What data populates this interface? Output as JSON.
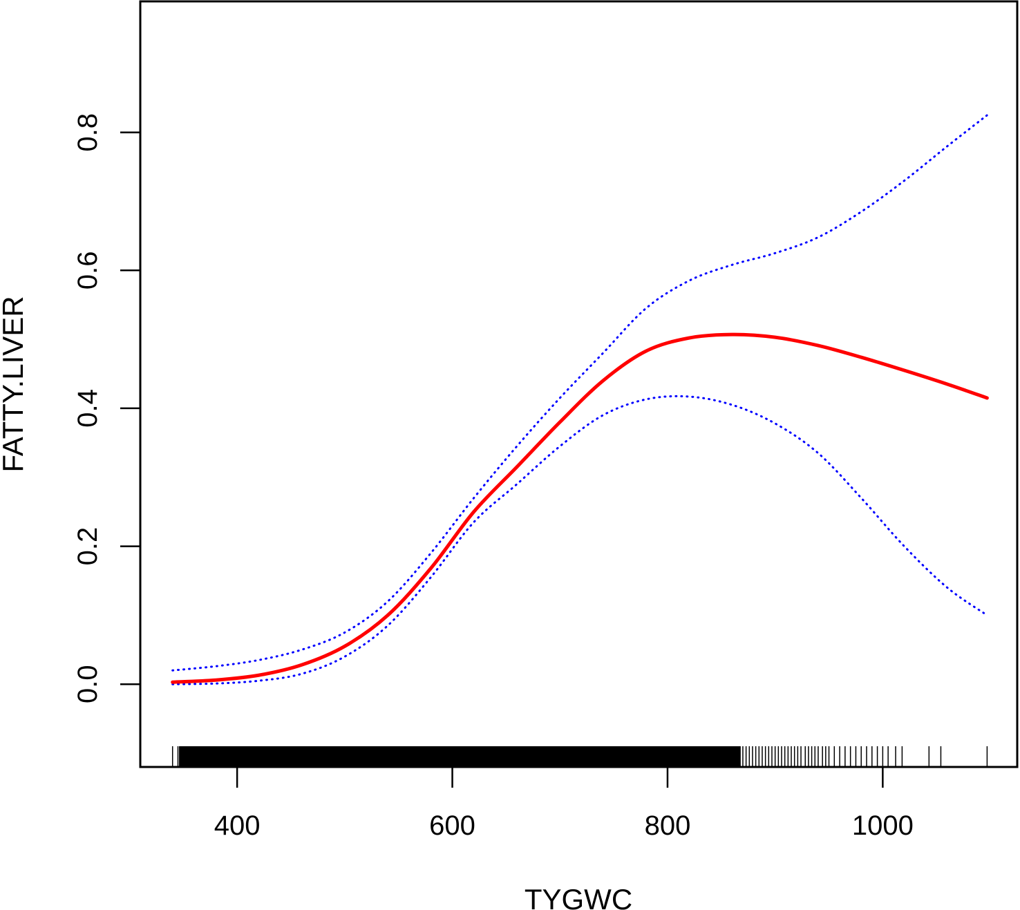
{
  "chart_data": {
    "type": "line",
    "title": "",
    "xlabel": "TYGWC",
    "ylabel": "FATTY.LIVER",
    "xlim": [
      310,
      1125
    ],
    "ylim": [
      -0.12,
      0.99
    ],
    "x_ticks": [
      400,
      600,
      800,
      1000
    ],
    "x_tick_labels": [
      "400",
      "600",
      "800",
      "1000"
    ],
    "y_ticks": [
      0.0,
      0.2,
      0.4,
      0.6,
      0.8
    ],
    "y_tick_labels": [
      "0.0",
      "0.2",
      "0.4",
      "0.6",
      "0.8"
    ],
    "grid": false,
    "legend": "none",
    "series": [
      {
        "style": "solid",
        "color": "#ff0000",
        "x": [
          340,
          380,
          420,
          460,
          500,
          540,
          580,
          620,
          660,
          700,
          740,
          780,
          820,
          860,
          900,
          940,
          980,
          1020,
          1060,
          1097
        ],
        "y": [
          0.003,
          0.006,
          0.013,
          0.028,
          0.055,
          0.1,
          0.168,
          0.25,
          0.315,
          0.38,
          0.44,
          0.483,
          0.502,
          0.507,
          0.503,
          0.491,
          0.474,
          0.455,
          0.435,
          0.415
        ]
      },
      {
        "style": "dotted",
        "color": "#0000ff",
        "x": [
          340,
          380,
          420,
          460,
          500,
          540,
          580,
          620,
          660,
          700,
          740,
          780,
          820,
          860,
          900,
          940,
          980,
          1020,
          1060,
          1097
        ],
        "y": [
          0.02,
          0.026,
          0.035,
          0.05,
          0.075,
          0.12,
          0.19,
          0.27,
          0.345,
          0.415,
          0.48,
          0.545,
          0.585,
          0.608,
          0.625,
          0.648,
          0.685,
          0.73,
          0.78,
          0.825
        ]
      },
      {
        "style": "dotted",
        "color": "#0000ff",
        "x": [
          340,
          380,
          420,
          460,
          500,
          540,
          580,
          620,
          660,
          700,
          740,
          780,
          820,
          860,
          900,
          940,
          980,
          1020,
          1060,
          1097
        ],
        "y": [
          0.0,
          0.001,
          0.005,
          0.015,
          0.04,
          0.085,
          0.155,
          0.235,
          0.29,
          0.345,
          0.39,
          0.413,
          0.417,
          0.405,
          0.378,
          0.335,
          0.27,
          0.2,
          0.14,
          0.1
        ]
      }
    ],
    "rug": {
      "color": "#000000",
      "dense_from": 346,
      "dense_to": 868,
      "x": [
        340,
        345,
        352,
        360,
        365,
        372,
        378,
        384,
        388,
        393,
        397,
        400,
        403,
        406,
        410,
        414,
        418,
        423,
        427,
        432,
        436,
        440,
        445,
        450,
        455,
        460,
        465,
        470,
        475,
        480,
        485,
        490,
        495,
        500,
        505,
        510,
        515,
        520,
        525,
        530,
        535,
        540,
        545,
        550,
        555,
        560,
        565,
        570,
        575,
        580,
        585,
        590,
        595,
        600,
        605,
        610,
        615,
        620,
        625,
        630,
        635,
        640,
        645,
        650,
        655,
        660,
        665,
        670,
        675,
        680,
        685,
        690,
        695,
        700,
        705,
        710,
        715,
        720,
        725,
        730,
        735,
        740,
        745,
        750,
        755,
        760,
        765,
        770,
        775,
        780,
        785,
        790,
        795,
        800,
        805,
        810,
        815,
        820,
        825,
        830,
        835,
        840,
        845,
        850,
        855,
        860,
        865,
        870,
        873,
        876,
        879,
        882,
        885,
        888,
        891,
        894,
        897,
        900,
        903,
        906,
        909,
        912,
        915,
        918,
        921,
        924,
        928,
        931,
        934,
        937,
        940,
        944,
        947,
        950,
        955,
        960,
        965,
        970,
        975,
        980,
        985,
        990,
        995,
        1000,
        1005,
        1012,
        1018,
        1043,
        1054,
        1097
      ]
    }
  }
}
